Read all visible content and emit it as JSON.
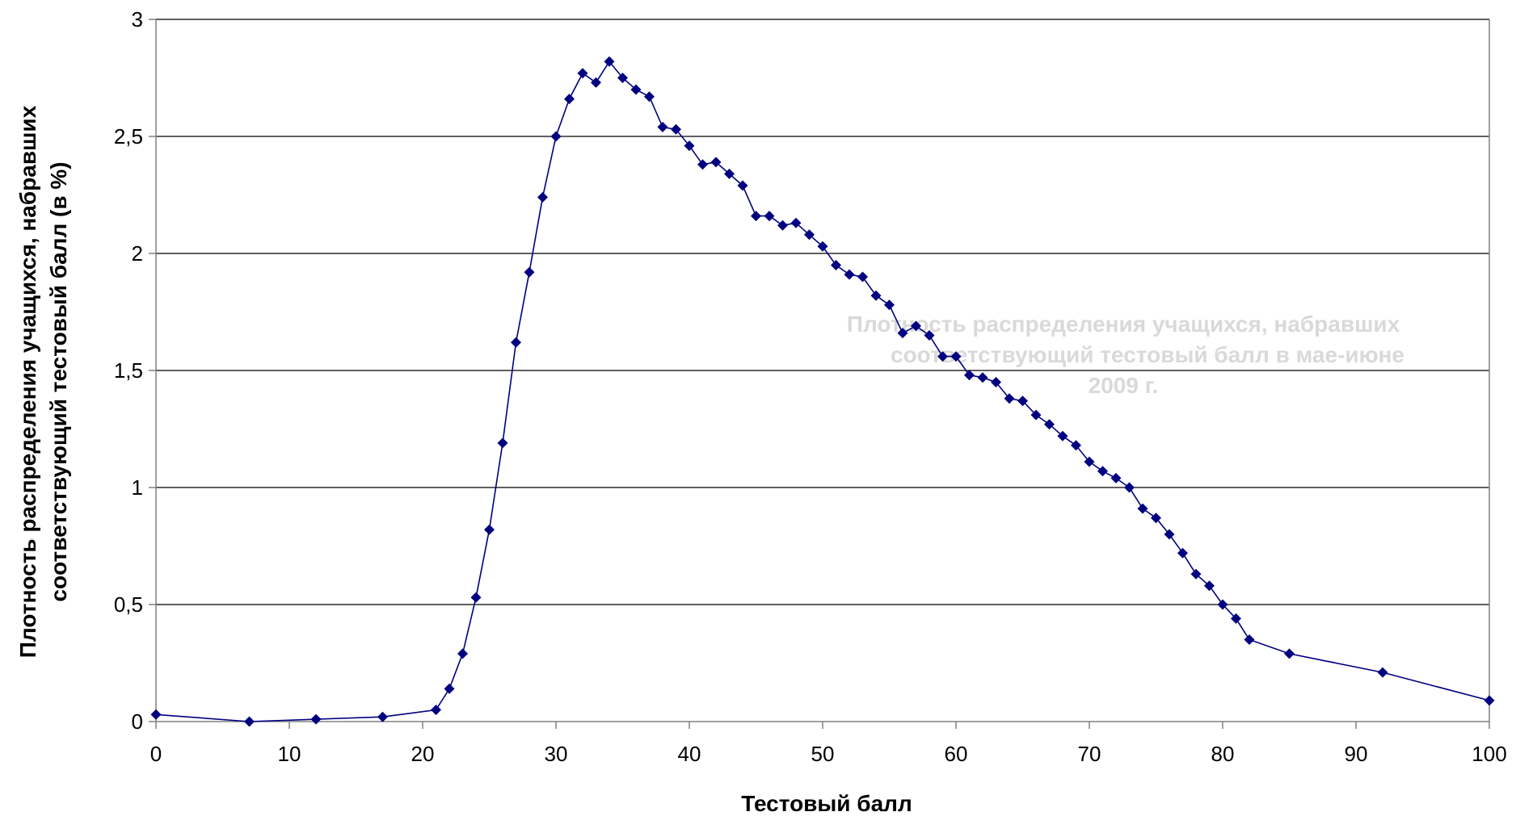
{
  "chart_data": {
    "type": "line",
    "xlabel": "Тестовый балл",
    "ylabel_lines": [
      "Плотность распределения учащихся, набравших",
      "соответствующий тестовый балл (в %)"
    ],
    "annotation_lines": [
      "Плотность распределения учащихся, набравших",
      "соответствующий тестовый балл в мае-июне",
      "2009 г."
    ],
    "xlim": [
      0,
      100
    ],
    "ylim": [
      0,
      3
    ],
    "x_ticks": [
      0,
      10,
      20,
      30,
      40,
      50,
      60,
      70,
      80,
      90,
      100
    ],
    "x_tick_labels": [
      "0",
      "10",
      "20",
      "30",
      "40",
      "50",
      "60",
      "70",
      "80",
      "90",
      "100"
    ],
    "y_ticks": [
      0,
      0.5,
      1,
      1.5,
      2,
      2.5,
      3
    ],
    "y_tick_labels": [
      "0",
      "0,5",
      "1",
      "1,5",
      "2",
      "2,5",
      "3"
    ],
    "grid": "horizontal",
    "legend": "none",
    "colors": {
      "series": "#000080",
      "grid": "#000000",
      "annotation": "#d9d9d9"
    },
    "series": [
      {
        "x": [
          0,
          7,
          12,
          17,
          21,
          22,
          23,
          24,
          25,
          26,
          27,
          28,
          29,
          30,
          31,
          32,
          33,
          34,
          35,
          36,
          37,
          38,
          39,
          40,
          41,
          42,
          43,
          44,
          45,
          46,
          47,
          48,
          49,
          50,
          51,
          52,
          53,
          54,
          55,
          56,
          57,
          58,
          59,
          60,
          61,
          62,
          63,
          64,
          65,
          66,
          67,
          68,
          69,
          70,
          71,
          72,
          73,
          74,
          75,
          76,
          77,
          78,
          79,
          80,
          81,
          82,
          85,
          92,
          100
        ],
        "y": [
          0.03,
          0.0,
          0.01,
          0.02,
          0.05,
          0.14,
          0.29,
          0.53,
          0.82,
          1.19,
          1.62,
          1.92,
          2.24,
          2.5,
          2.66,
          2.77,
          2.73,
          2.82,
          2.75,
          2.7,
          2.67,
          2.54,
          2.53,
          2.46,
          2.38,
          2.39,
          2.34,
          2.29,
          2.16,
          2.16,
          2.12,
          2.13,
          2.08,
          2.03,
          1.95,
          1.91,
          1.9,
          1.82,
          1.78,
          1.66,
          1.69,
          1.65,
          1.56,
          1.56,
          1.48,
          1.47,
          1.45,
          1.38,
          1.37,
          1.31,
          1.27,
          1.22,
          1.18,
          1.11,
          1.07,
          1.04,
          1.0,
          0.91,
          0.87,
          0.8,
          0.72,
          0.63,
          0.58,
          0.5,
          0.44,
          0.35,
          0.29,
          0.21,
          0.09
        ]
      }
    ]
  }
}
